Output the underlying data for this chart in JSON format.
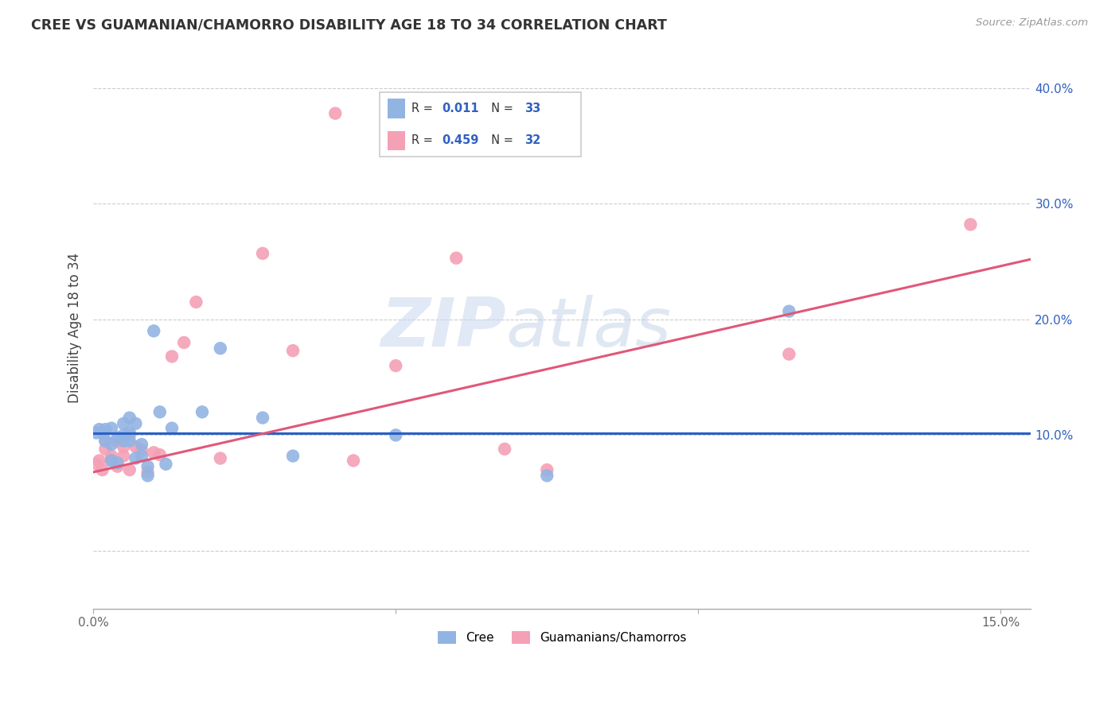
{
  "title": "CREE VS GUAMANIAN/CHAMORRO DISABILITY AGE 18 TO 34 CORRELATION CHART",
  "source": "Source: ZipAtlas.com",
  "ylabel": "Disability Age 18 to 34",
  "cree_R": "0.011",
  "cree_N": "33",
  "guam_R": "0.459",
  "guam_N": "32",
  "cree_color": "#92b4e3",
  "guam_color": "#f4a0b5",
  "cree_line_color": "#2860c8",
  "guam_line_color": "#e05878",
  "watermark_zip": "ZIP",
  "watermark_atlas": "atlas",
  "xlim": [
    0.0,
    0.155
  ],
  "ylim": [
    -0.05,
    0.435
  ],
  "xtick_vals": [
    0.0,
    0.05,
    0.1,
    0.15
  ],
  "xtick_labels": [
    "0.0%",
    "",
    "",
    "15.0%"
  ],
  "ytick_vals": [
    0.0,
    0.1,
    0.2,
    0.3,
    0.4
  ],
  "ytick_labels": [
    "",
    "10.0%",
    "20.0%",
    "30.0%",
    "40.0%"
  ],
  "cree_line_y0": 0.102,
  "cree_line_y1": 0.102,
  "guam_line_y0": 0.068,
  "guam_line_y1": 0.252,
  "cree_x": [
    0.0005,
    0.001,
    0.0015,
    0.002,
    0.002,
    0.003,
    0.003,
    0.003,
    0.004,
    0.004,
    0.005,
    0.005,
    0.005,
    0.006,
    0.006,
    0.006,
    0.007,
    0.007,
    0.008,
    0.008,
    0.009,
    0.009,
    0.01,
    0.011,
    0.012,
    0.013,
    0.018,
    0.021,
    0.028,
    0.033,
    0.05,
    0.075,
    0.115
  ],
  "cree_y": [
    0.102,
    0.105,
    0.102,
    0.095,
    0.105,
    0.078,
    0.092,
    0.106,
    0.076,
    0.098,
    0.1,
    0.095,
    0.11,
    0.102,
    0.095,
    0.115,
    0.08,
    0.11,
    0.082,
    0.092,
    0.065,
    0.073,
    0.19,
    0.12,
    0.075,
    0.106,
    0.12,
    0.175,
    0.115,
    0.082,
    0.1,
    0.065,
    0.207
  ],
  "guam_x": [
    0.0005,
    0.001,
    0.0015,
    0.002,
    0.002,
    0.003,
    0.003,
    0.004,
    0.004,
    0.005,
    0.005,
    0.006,
    0.006,
    0.007,
    0.008,
    0.009,
    0.01,
    0.011,
    0.013,
    0.015,
    0.017,
    0.021,
    0.028,
    0.033,
    0.04,
    0.043,
    0.05,
    0.06,
    0.068,
    0.075,
    0.115,
    0.145
  ],
  "guam_y": [
    0.075,
    0.078,
    0.07,
    0.088,
    0.095,
    0.082,
    0.078,
    0.073,
    0.095,
    0.082,
    0.09,
    0.07,
    0.1,
    0.09,
    0.087,
    0.068,
    0.085,
    0.083,
    0.168,
    0.18,
    0.215,
    0.08,
    0.257,
    0.173,
    0.378,
    0.078,
    0.16,
    0.253,
    0.088,
    0.07,
    0.17,
    0.282
  ]
}
